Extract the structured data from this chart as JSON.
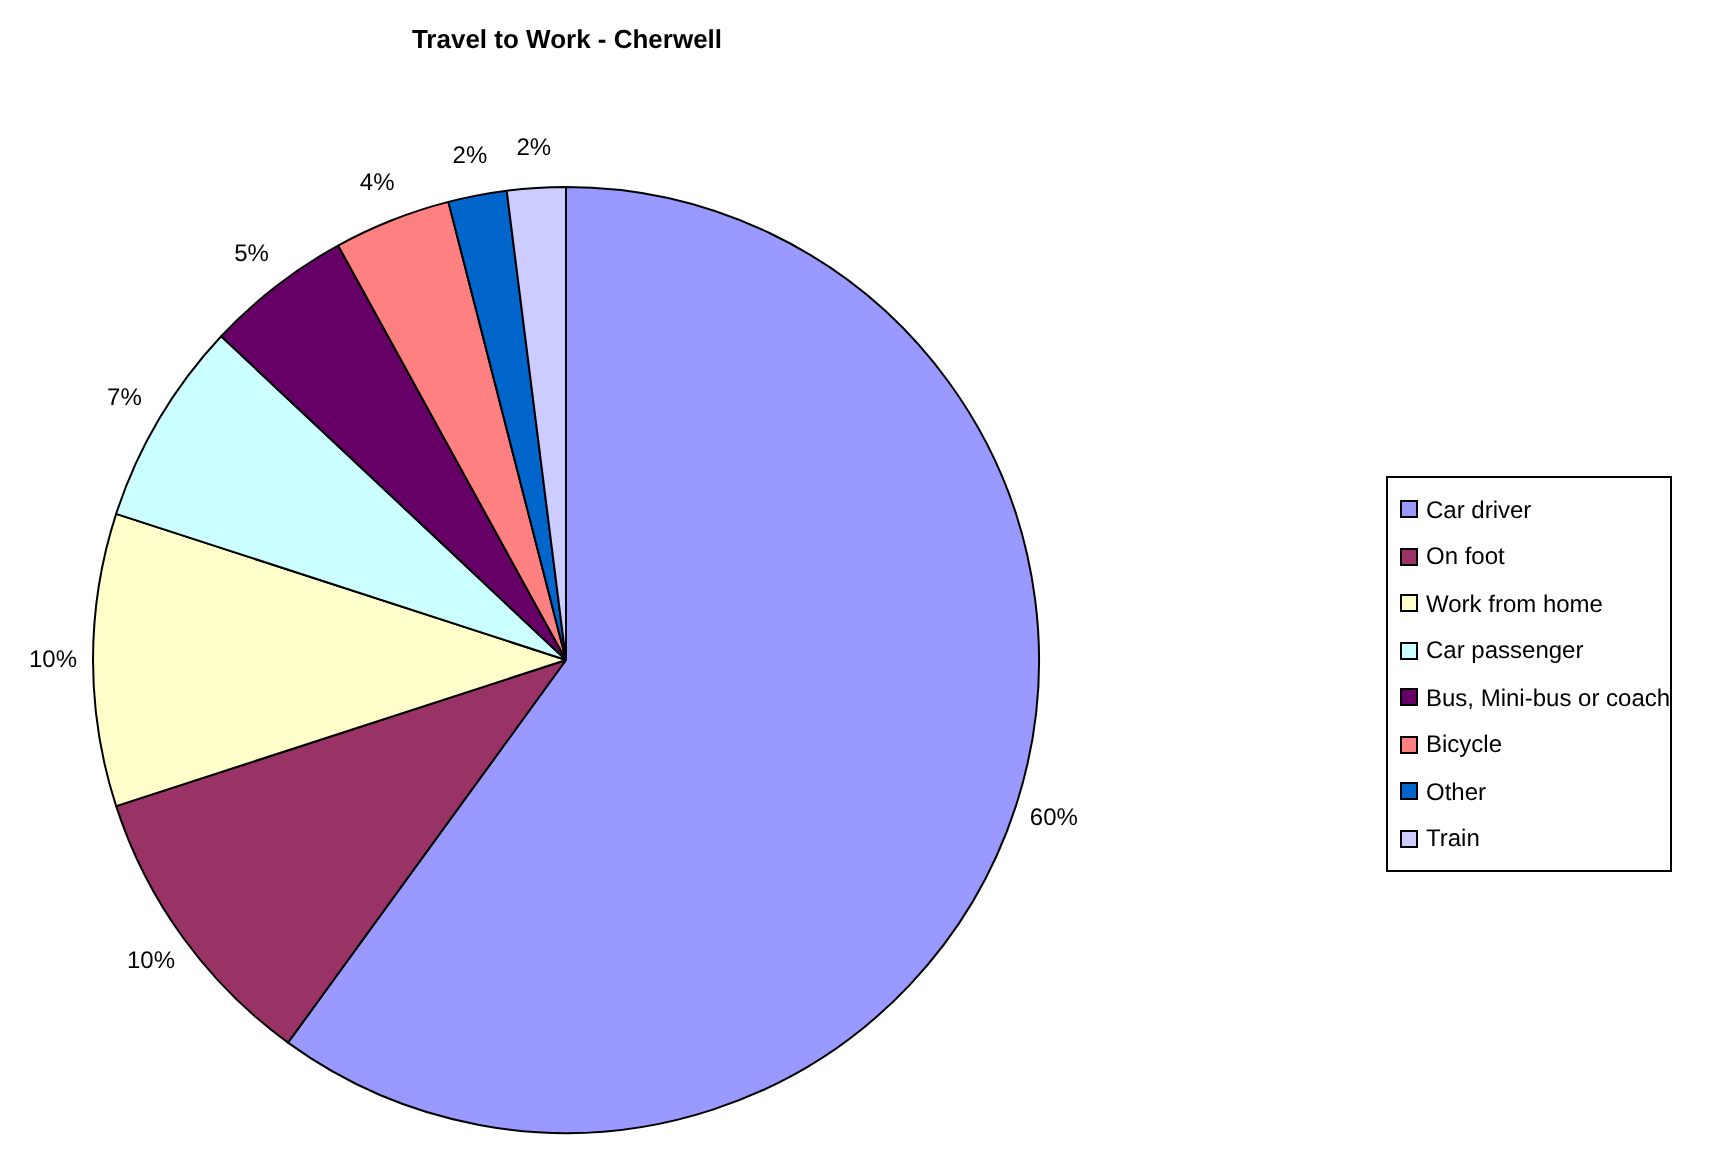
{
  "chart_data": {
    "type": "pie",
    "title": "Travel to Work - Cherwell",
    "categories": [
      "Car driver",
      "On foot",
      "Work from home",
      "Car passenger",
      "Bus, Mini-bus or coach",
      "Bicycle",
      "Other",
      "Train"
    ],
    "values": [
      60,
      10,
      10,
      7,
      5,
      4,
      2,
      2
    ],
    "value_labels": [
      "60%",
      "10%",
      "10%",
      "7%",
      "5%",
      "4%",
      "2%",
      "2%"
    ],
    "colors": [
      "#9999ff",
      "#993366",
      "#ffffcc",
      "#ccffff",
      "#660066",
      "#ff8080",
      "#0066cc",
      "#ccccff"
    ],
    "legend": "right"
  }
}
